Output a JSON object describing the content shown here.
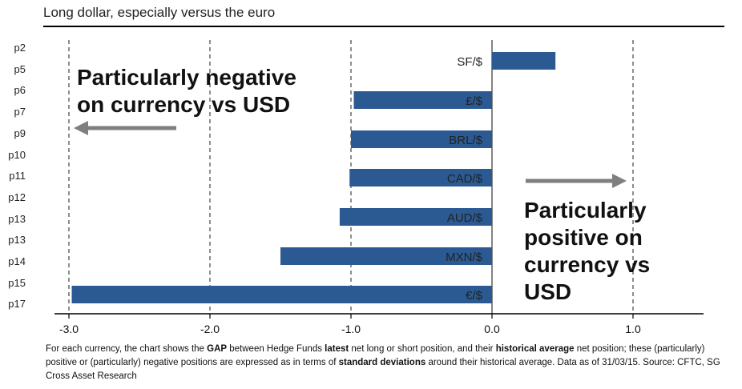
{
  "title": "Long dollar, especially versus the euro",
  "page_labels": [
    "p2",
    "p5",
    "p6",
    "p7",
    "p9",
    "p10",
    "p11",
    "p12",
    "p13",
    "p13",
    "p14",
    "p15",
    "p17"
  ],
  "chart_data": {
    "type": "bar",
    "orientation": "horizontal",
    "categories": [
      "SF/$",
      "£/$",
      "BRL/$",
      "CAD/$",
      "AUD/$",
      "MXN/$",
      "€/$"
    ],
    "values": [
      0.45,
      -0.98,
      -1.0,
      -1.01,
      -1.08,
      -1.5,
      -2.98
    ],
    "xlim": [
      -3.0,
      1.5
    ],
    "xticks": [
      -3.0,
      -2.0,
      -1.0,
      0.0,
      1.0
    ],
    "xtick_labels": [
      "-3.0",
      "-2.0",
      "-1.0",
      "0.0",
      "1.0"
    ],
    "grid": "dashed vertical at -3.0, -2.0, -1.0, 1.0",
    "bar_color": "#2b5a93",
    "annotations": [
      {
        "text_lines": [
          "Particularly negative",
          "on currency vs USD"
        ],
        "arrow": "left"
      },
      {
        "text_lines": [
          "Particularly",
          "positive on",
          "currency vs",
          "USD"
        ],
        "arrow": "right"
      }
    ]
  },
  "footnote": {
    "p1": "For each currency, the chart shows the ",
    "b1": "GAP",
    "p2": " between Hedge Funds ",
    "b2": "latest",
    "p3": " net long or short position, and their ",
    "b3": "historical average",
    "p4": " net position; these (particularly) positive or (particularly) negative positions are expressed as in terms of ",
    "b4": "standard deviations",
    "p5": " around their historical average. Data as of 31/03/15. Source: CFTC, SG Cross Asset Research"
  }
}
